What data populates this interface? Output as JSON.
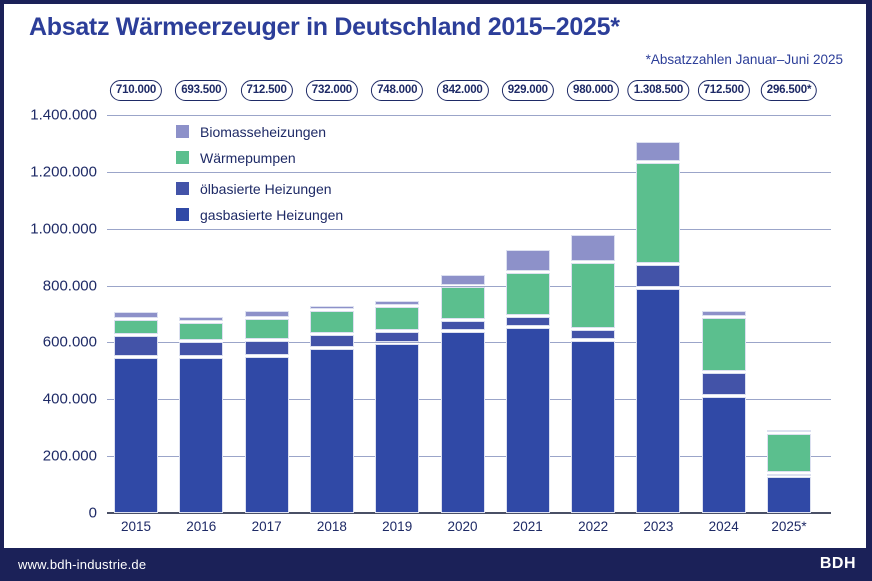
{
  "footer": {
    "url": "www.bdh-industrie.de",
    "logo": "BDH"
  },
  "colors": {
    "frame_navy": "#1b2158",
    "title_blue": "#2c3e99",
    "axis_text": "#1e2a66",
    "gridline": "#9ba5c9",
    "zero_axis": "#4a5066",
    "gas": "#3049a6",
    "oil": "#4353a8",
    "heat_pump": "#5bbf8e",
    "biomass": "#8d91c9"
  },
  "chart_data": {
    "type": "bar",
    "stacked": true,
    "title": "Absatz Wärmeerzeuger in Deutschland 2015–2025*",
    "note": "*Absatzzahlen Januar–Juni 2025",
    "categories": [
      "2015",
      "2016",
      "2017",
      "2018",
      "2019",
      "2020",
      "2021",
      "2022",
      "2023",
      "2024",
      "2025*"
    ],
    "total_labels": [
      "710.000",
      "693.500",
      "712.500",
      "732.000",
      "748.000",
      "842.000",
      "929.000",
      "980.000",
      "1.308.500",
      "712.500",
      "296.500*"
    ],
    "totals": [
      710000,
      693500,
      712500,
      732000,
      748000,
      842000,
      929000,
      980000,
      1308500,
      712500,
      296500
    ],
    "series": [
      {
        "name": "gasbasierte Heizungen",
        "color": "#3049a6",
        "values": [
          549500,
          547500,
          553000,
          581500,
          597500,
          638500,
          653000,
          608000,
          790500,
          412500,
          131000
        ]
      },
      {
        "name": "ölbasierte Heizungen",
        "color": "#4353a8",
        "values": [
          76000,
          58500,
          55500,
          47500,
          44000,
          41000,
          40500,
          38000,
          86500,
          83500,
          11000
        ]
      },
      {
        "name": "Wärmepumpen",
        "color": "#5bbf8e",
        "values": [
          57000,
          66500,
          78000,
          84000,
          86000,
          120000,
          154000,
          236000,
          356000,
          193000,
          139500
        ]
      },
      {
        "name": "Biomasseheizungen",
        "color": "#8d91c9",
        "values": [
          27500,
          21000,
          26000,
          19000,
          20500,
          42500,
          81500,
          98000,
          75500,
          23500,
          15000
        ]
      }
    ],
    "legend": [
      {
        "label": "Biomasseheizungen",
        "color": "#8d91c9"
      },
      {
        "label": "Wärmepumpen",
        "color": "#5bbf8e"
      },
      {
        "label": "ölbasierte Heizungen",
        "color": "#4353a8"
      },
      {
        "label": "gasbasierte Heizungen",
        "color": "#3049a6"
      }
    ],
    "legend_position": "upper-left-inside",
    "y_ticks": [
      "1.400.000",
      "1.200.000",
      "1.000.000",
      "800.000",
      "600.000",
      "400.000",
      "200.000",
      "0"
    ],
    "ylim": [
      0,
      1400000
    ],
    "grid": true,
    "xlabel": "",
    "ylabel": ""
  }
}
